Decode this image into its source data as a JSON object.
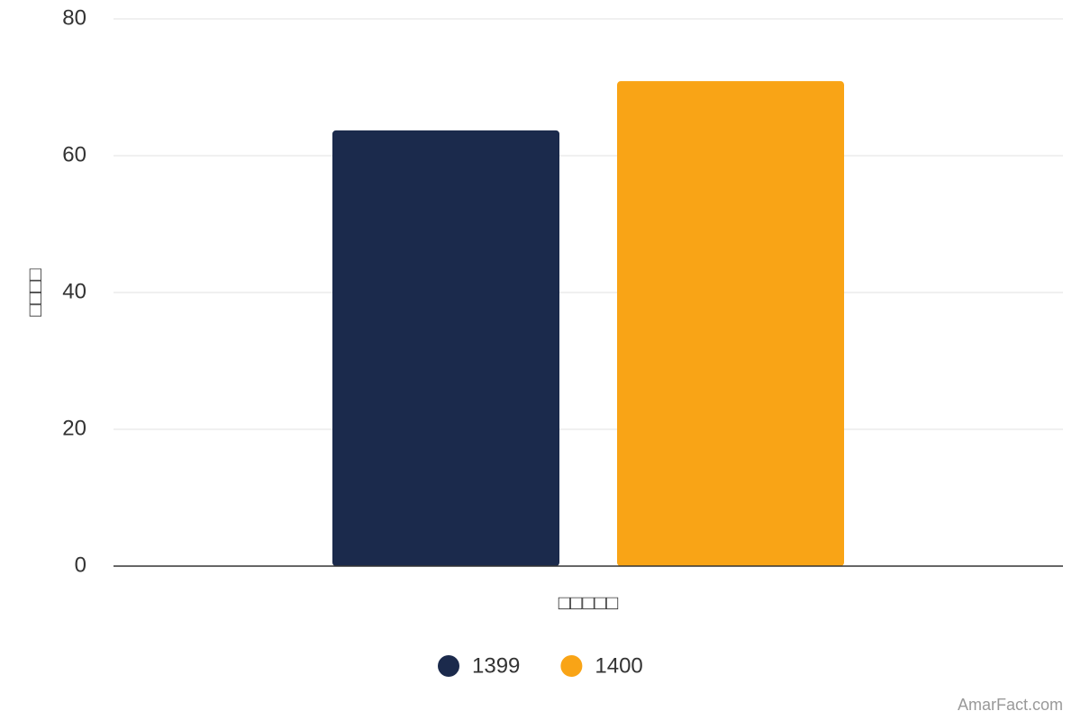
{
  "chart_data": {
    "type": "bar",
    "y_label": "□□□□",
    "categories": [
      "□□□□□"
    ],
    "series": [
      {
        "name": "1399",
        "color": "#1b2a4c",
        "values": [
          63.7
        ]
      },
      {
        "name": "1400",
        "color": "#f9a416",
        "values": [
          70.9
        ]
      }
    ],
    "ylim": [
      0,
      80
    ],
    "yticks": [
      0,
      20,
      40,
      60,
      80
    ],
    "grid": true,
    "legend": "bottom",
    "credit": "AmarFact.com"
  }
}
